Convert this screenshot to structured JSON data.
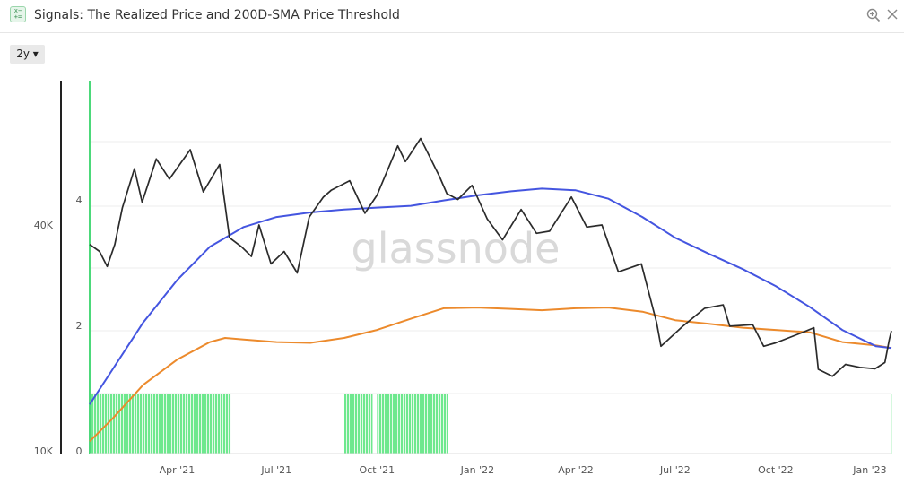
{
  "header": {
    "title": "Signals: The Realized Price and 200D-SMA Price Threshold",
    "title_icon_glyph": "x− +=",
    "zoom_icon": "zoom-in-icon",
    "close_icon": "close-icon"
  },
  "toolbar": {
    "range_label": "2y ▾"
  },
  "watermark": "glassnode",
  "colors": {
    "price": "#2b2b2b",
    "sma200": "#4455e0",
    "realized": "#ec8a2c",
    "signal": "#6ee88e",
    "signal_border": "#4cd97a"
  },
  "chart_data": {
    "type": "line",
    "x_ticks": [
      "Apr '21",
      "Jul '21",
      "Oct '21",
      "Jan '22",
      "Apr '22",
      "Jul '22",
      "Oct '22",
      "Jan '23"
    ],
    "y_left_ticks": [
      "10K",
      "40K"
    ],
    "y_right_ticks": [
      "0",
      "2",
      "4"
    ],
    "y_left_scale": "log",
    "x_range": [
      "2021-01-11",
      "2023-01-15"
    ],
    "series": [
      {
        "role": "price",
        "points": [
          [
            "2021-01-11",
            35500
          ],
          [
            "2021-01-20",
            34000
          ],
          [
            "2021-01-27",
            31000
          ],
          [
            "2021-02-03",
            35500
          ],
          [
            "2021-02-10",
            44500
          ],
          [
            "2021-02-21",
            56500
          ],
          [
            "2021-02-28",
            46000
          ],
          [
            "2021-03-13",
            60000
          ],
          [
            "2021-03-25",
            53000
          ],
          [
            "2021-04-13",
            63500
          ],
          [
            "2021-04-25",
            49000
          ],
          [
            "2021-05-10",
            58000
          ],
          [
            "2021-05-19",
            37000
          ],
          [
            "2021-05-30",
            35000
          ],
          [
            "2021-06-08",
            33000
          ],
          [
            "2021-06-15",
            40000
          ],
          [
            "2021-06-26",
            31500
          ],
          [
            "2021-07-08",
            34000
          ],
          [
            "2021-07-20",
            29800
          ],
          [
            "2021-07-31",
            42000
          ],
          [
            "2021-08-13",
            47500
          ],
          [
            "2021-08-20",
            49500
          ],
          [
            "2021-09-06",
            52500
          ],
          [
            "2021-09-20",
            43000
          ],
          [
            "2021-10-01",
            48000
          ],
          [
            "2021-10-20",
            65000
          ],
          [
            "2021-10-27",
            59000
          ],
          [
            "2021-11-10",
            68000
          ],
          [
            "2021-11-27",
            54000
          ],
          [
            "2021-12-04",
            48500
          ],
          [
            "2021-12-14",
            46800
          ],
          [
            "2021-12-27",
            51000
          ],
          [
            "2022-01-10",
            41500
          ],
          [
            "2022-01-24",
            36500
          ],
          [
            "2022-02-10",
            44000
          ],
          [
            "2022-02-24",
            38000
          ],
          [
            "2022-03-08",
            38500
          ],
          [
            "2022-03-28",
            47500
          ],
          [
            "2022-04-11",
            39500
          ],
          [
            "2022-04-25",
            40000
          ],
          [
            "2022-05-10",
            30000
          ],
          [
            "2022-05-31",
            31500
          ],
          [
            "2022-06-14",
            22000
          ],
          [
            "2022-06-18",
            19000
          ],
          [
            "2022-07-08",
            21500
          ],
          [
            "2022-07-28",
            24000
          ],
          [
            "2022-08-14",
            24500
          ],
          [
            "2022-08-20",
            21500
          ],
          [
            "2022-09-10",
            21700
          ],
          [
            "2022-09-20",
            19000
          ],
          [
            "2022-10-01",
            19400
          ],
          [
            "2022-10-26",
            20700
          ],
          [
            "2022-11-05",
            21300
          ],
          [
            "2022-11-09",
            16500
          ],
          [
            "2022-11-22",
            15800
          ],
          [
            "2022-12-04",
            17000
          ],
          [
            "2022-12-17",
            16700
          ],
          [
            "2022-12-31",
            16550
          ],
          [
            "2023-01-09",
            17200
          ],
          [
            "2023-01-13",
            19800
          ],
          [
            "2023-01-15",
            20900
          ]
        ]
      },
      {
        "role": "200D-SMA",
        "points": [
          [
            "2021-01-11",
            13300
          ],
          [
            "2021-02-01",
            16500
          ],
          [
            "2021-03-01",
            22000
          ],
          [
            "2021-04-01",
            28500
          ],
          [
            "2021-05-01",
            35000
          ],
          [
            "2021-06-01",
            39500
          ],
          [
            "2021-07-01",
            42000
          ],
          [
            "2021-08-01",
            43200
          ],
          [
            "2021-09-01",
            44000
          ],
          [
            "2021-10-01",
            44500
          ],
          [
            "2021-11-01",
            45000
          ],
          [
            "2021-12-01",
            46500
          ],
          [
            "2022-01-01",
            48000
          ],
          [
            "2022-02-01",
            49200
          ],
          [
            "2022-03-01",
            50000
          ],
          [
            "2022-04-01",
            49500
          ],
          [
            "2022-05-01",
            47000
          ],
          [
            "2022-06-01",
            42000
          ],
          [
            "2022-07-01",
            37000
          ],
          [
            "2022-08-01",
            33500
          ],
          [
            "2022-09-01",
            30500
          ],
          [
            "2022-10-01",
            27500
          ],
          [
            "2022-11-01",
            24200
          ],
          [
            "2022-12-01",
            21000
          ],
          [
            "2023-01-01",
            19000
          ],
          [
            "2023-01-15",
            18800
          ]
        ]
      },
      {
        "role": "realized-price",
        "points": [
          [
            "2021-01-11",
            10600
          ],
          [
            "2021-02-01",
            12200
          ],
          [
            "2021-03-01",
            15000
          ],
          [
            "2021-04-01",
            17500
          ],
          [
            "2021-05-01",
            19500
          ],
          [
            "2021-05-15",
            20000
          ],
          [
            "2021-06-01",
            19800
          ],
          [
            "2021-07-01",
            19500
          ],
          [
            "2021-08-01",
            19400
          ],
          [
            "2021-09-01",
            20000
          ],
          [
            "2021-10-01",
            21000
          ],
          [
            "2021-11-01",
            22500
          ],
          [
            "2021-12-01",
            24000
          ],
          [
            "2022-01-01",
            24100
          ],
          [
            "2022-02-01",
            23900
          ],
          [
            "2022-03-01",
            23700
          ],
          [
            "2022-04-01",
            24000
          ],
          [
            "2022-05-01",
            24100
          ],
          [
            "2022-06-01",
            23500
          ],
          [
            "2022-07-01",
            22300
          ],
          [
            "2022-08-01",
            21800
          ],
          [
            "2022-09-01",
            21300
          ],
          [
            "2022-10-01",
            21000
          ],
          [
            "2022-11-01",
            20700
          ],
          [
            "2022-12-01",
            19500
          ],
          [
            "2023-01-01",
            19100
          ],
          [
            "2023-01-15",
            18800
          ]
        ]
      }
    ],
    "signal_intervals": [
      [
        "2021-01-11",
        "2021-05-20"
      ],
      [
        "2021-09-01",
        "2021-09-27"
      ],
      [
        "2021-10-01",
        "2021-12-05"
      ],
      [
        "2023-01-14",
        "2023-01-15"
      ]
    ]
  }
}
